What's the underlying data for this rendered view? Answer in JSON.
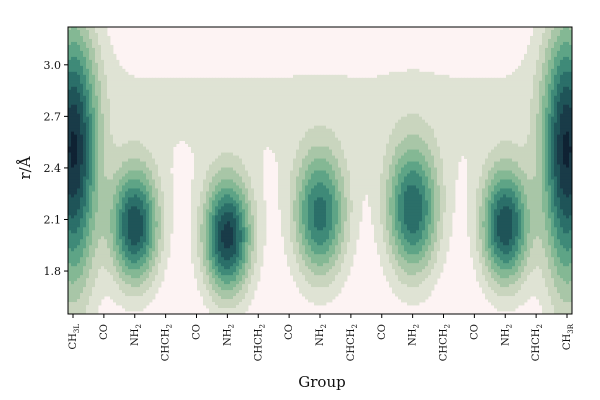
{
  "chart_data": {
    "type": "contour",
    "title": "",
    "xlabel": "Group",
    "ylabel": "r/Å",
    "ylim": [
      1.55,
      3.22
    ],
    "yticks": [
      1.8,
      2.1,
      2.4,
      2.7,
      3.0
    ],
    "categories": [
      {
        "base": "CH",
        "sub": "3L"
      },
      {
        "base": "CO",
        "sub": ""
      },
      {
        "base": "NH",
        "sub": "2"
      },
      {
        "base": "CHCH",
        "sub": "2"
      },
      {
        "base": "CO",
        "sub": ""
      },
      {
        "base": "NH",
        "sub": "2"
      },
      {
        "base": "CHCH",
        "sub": "2"
      },
      {
        "base": "CO",
        "sub": ""
      },
      {
        "base": "NH",
        "sub": "2"
      },
      {
        "base": "CHCH",
        "sub": "2"
      },
      {
        "base": "CO",
        "sub": ""
      },
      {
        "base": "NH",
        "sub": "2"
      },
      {
        "base": "CHCH",
        "sub": "2"
      },
      {
        "base": "CO",
        "sub": ""
      },
      {
        "base": "NH",
        "sub": "2"
      },
      {
        "base": "CHCH",
        "sub": "2"
      },
      {
        "base": "CH",
        "sub": "3R"
      }
    ],
    "levels": 10,
    "colormap": [
      "#fdf3f3",
      "#dfe3d4",
      "#c9d5be",
      "#a8c6a7",
      "#84b894",
      "#5ea486",
      "#3f8a78",
      "#2b6f69",
      "#1f5458",
      "#193b48",
      "#0f2233"
    ],
    "density_peaks": [
      {
        "group": 0,
        "r": 2.45,
        "width": 0.55,
        "spread": 0.55,
        "weight": 1.0
      },
      {
        "group": 2,
        "r": 2.06,
        "width": 0.55,
        "spread": 0.24,
        "weight": 0.93
      },
      {
        "group": 5,
        "r": 2.0,
        "width": 0.55,
        "spread": 0.24,
        "weight": 1.0
      },
      {
        "group": 8,
        "r": 2.12,
        "width": 0.6,
        "spread": 0.26,
        "weight": 0.78
      },
      {
        "group": 11,
        "r": 2.15,
        "width": 0.6,
        "spread": 0.27,
        "weight": 0.82
      },
      {
        "group": 14,
        "r": 2.06,
        "width": 0.55,
        "spread": 0.24,
        "weight": 0.93
      },
      {
        "group": 16,
        "r": 2.45,
        "width": 0.55,
        "spread": 0.55,
        "weight": 1.0
      }
    ]
  }
}
